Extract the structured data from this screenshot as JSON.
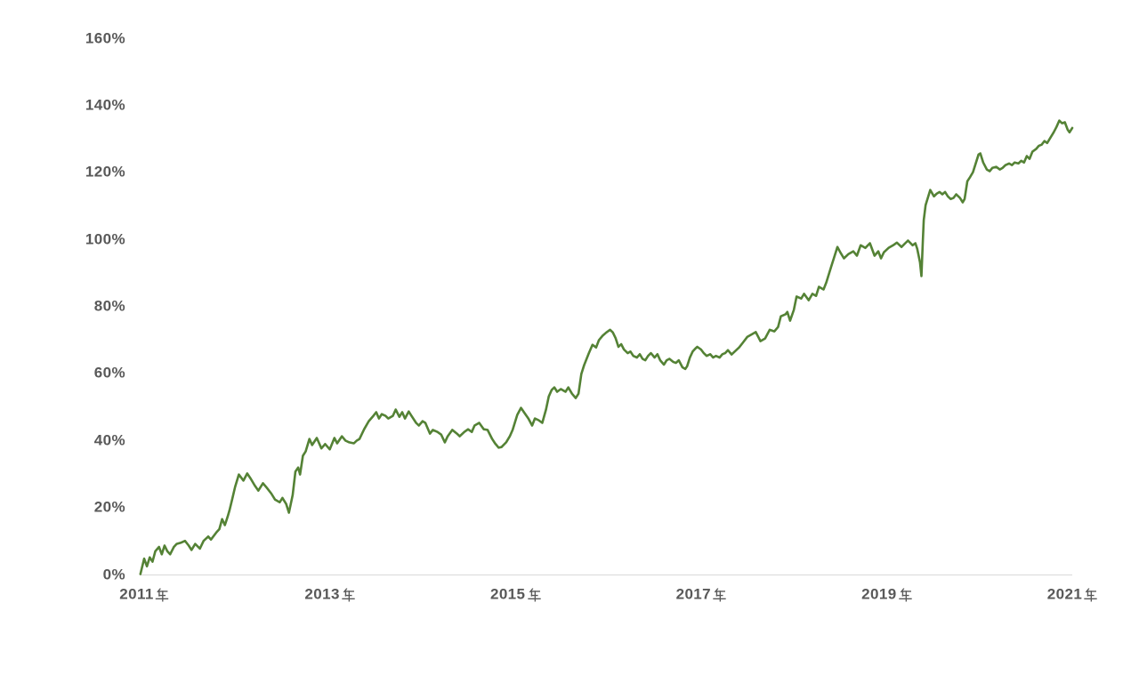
{
  "page": {
    "background": "#ffffff"
  },
  "chart_data": {
    "type": "line",
    "title": "",
    "grid": false,
    "legend": "none",
    "colors": {
      "line": "#548235",
      "axis_labels": "#595959",
      "axis_line": "#d9d9d9",
      "background": "#ffffff"
    },
    "x_axis": {
      "tick_labels": [
        "2011年",
        "2013年",
        "2015年",
        "2017年",
        "2019年",
        "2021年"
      ],
      "tick_years": [
        2011,
        2013,
        2015,
        2017,
        2019,
        2021
      ],
      "range": [
        2010.96,
        2021.0
      ]
    },
    "y_axis": {
      "tick_labels": [
        "0%",
        "20%",
        "40%",
        "60%",
        "80%",
        "100%",
        "120%",
        "140%",
        "160%"
      ],
      "tick_values": [
        0,
        20,
        40,
        60,
        80,
        100,
        120,
        140,
        160
      ],
      "range": [
        0,
        160
      ],
      "unit_suffix": "%"
    },
    "series": [
      {
        "name": "",
        "points": [
          [
            2010.96,
            0.0
          ],
          [
            2011.0,
            4.6
          ],
          [
            2011.03,
            2.3
          ],
          [
            2011.06,
            5.0
          ],
          [
            2011.09,
            3.7
          ],
          [
            2011.12,
            6.8
          ],
          [
            2011.16,
            8.1
          ],
          [
            2011.19,
            5.9
          ],
          [
            2011.22,
            8.5
          ],
          [
            2011.25,
            6.8
          ],
          [
            2011.28,
            5.9
          ],
          [
            2011.32,
            8.1
          ],
          [
            2011.35,
            9.0
          ],
          [
            2011.4,
            9.4
          ],
          [
            2011.44,
            9.9
          ],
          [
            2011.48,
            8.5
          ],
          [
            2011.51,
            7.2
          ],
          [
            2011.55,
            9.0
          ],
          [
            2011.6,
            7.6
          ],
          [
            2011.64,
            9.9
          ],
          [
            2011.69,
            11.2
          ],
          [
            2011.72,
            10.3
          ],
          [
            2011.78,
            12.5
          ],
          [
            2011.81,
            13.4
          ],
          [
            2011.84,
            16.4
          ],
          [
            2011.87,
            14.6
          ],
          [
            2011.9,
            17.2
          ],
          [
            2011.92,
            19.1
          ],
          [
            2011.95,
            22.5
          ],
          [
            2011.98,
            26.0
          ],
          [
            2012.02,
            29.7
          ],
          [
            2012.07,
            27.9
          ],
          [
            2012.11,
            30.0
          ],
          [
            2012.15,
            28.4
          ],
          [
            2012.19,
            26.5
          ],
          [
            2012.23,
            24.9
          ],
          [
            2012.28,
            27.1
          ],
          [
            2012.32,
            25.8
          ],
          [
            2012.37,
            24.0
          ],
          [
            2012.41,
            22.2
          ],
          [
            2012.46,
            21.4
          ],
          [
            2012.49,
            22.7
          ],
          [
            2012.53,
            20.9
          ],
          [
            2012.56,
            18.3
          ],
          [
            2012.6,
            23.6
          ],
          [
            2012.63,
            30.6
          ],
          [
            2012.66,
            31.8
          ],
          [
            2012.68,
            29.7
          ],
          [
            2012.71,
            35.3
          ],
          [
            2012.74,
            36.6
          ],
          [
            2012.78,
            40.3
          ],
          [
            2012.81,
            38.5
          ],
          [
            2012.86,
            40.6
          ],
          [
            2012.91,
            37.5
          ],
          [
            2012.95,
            38.8
          ],
          [
            2013.0,
            37.2
          ],
          [
            2013.05,
            40.6
          ],
          [
            2013.08,
            39.0
          ],
          [
            2013.13,
            41.1
          ],
          [
            2013.17,
            39.8
          ],
          [
            2013.21,
            39.3
          ],
          [
            2013.26,
            39.0
          ],
          [
            2013.29,
            39.8
          ],
          [
            2013.32,
            40.3
          ],
          [
            2013.37,
            43.2
          ],
          [
            2013.42,
            45.6
          ],
          [
            2013.47,
            47.2
          ],
          [
            2013.5,
            48.3
          ],
          [
            2013.53,
            46.4
          ],
          [
            2013.56,
            47.7
          ],
          [
            2013.6,
            47.2
          ],
          [
            2013.63,
            46.4
          ],
          [
            2013.68,
            47.2
          ],
          [
            2013.71,
            49.1
          ],
          [
            2013.75,
            46.9
          ],
          [
            2013.78,
            48.3
          ],
          [
            2013.81,
            46.4
          ],
          [
            2013.85,
            48.5
          ],
          [
            2013.88,
            47.2
          ],
          [
            2013.93,
            45.1
          ],
          [
            2013.96,
            44.3
          ],
          [
            2014.0,
            45.6
          ],
          [
            2014.03,
            45.1
          ],
          [
            2014.08,
            41.9
          ],
          [
            2014.11,
            43.0
          ],
          [
            2014.16,
            42.4
          ],
          [
            2014.2,
            41.6
          ],
          [
            2014.24,
            39.3
          ],
          [
            2014.27,
            41.1
          ],
          [
            2014.32,
            43.0
          ],
          [
            2014.37,
            41.9
          ],
          [
            2014.4,
            41.1
          ],
          [
            2014.45,
            42.4
          ],
          [
            2014.49,
            43.2
          ],
          [
            2014.53,
            42.4
          ],
          [
            2014.56,
            44.3
          ],
          [
            2014.61,
            45.1
          ],
          [
            2014.66,
            43.2
          ],
          [
            2014.7,
            43.0
          ],
          [
            2014.75,
            40.3
          ],
          [
            2014.78,
            39.0
          ],
          [
            2014.82,
            37.7
          ],
          [
            2014.85,
            37.9
          ],
          [
            2014.9,
            39.3
          ],
          [
            2014.94,
            41.1
          ],
          [
            2014.97,
            43.0
          ],
          [
            2015.02,
            47.5
          ],
          [
            2015.06,
            49.6
          ],
          [
            2015.1,
            48.0
          ],
          [
            2015.14,
            46.4
          ],
          [
            2015.18,
            44.3
          ],
          [
            2015.21,
            46.4
          ],
          [
            2015.25,
            45.9
          ],
          [
            2015.29,
            45.1
          ],
          [
            2015.33,
            49.1
          ],
          [
            2015.36,
            53.0
          ],
          [
            2015.39,
            54.9
          ],
          [
            2015.42,
            55.7
          ],
          [
            2015.45,
            54.4
          ],
          [
            2015.49,
            55.2
          ],
          [
            2015.54,
            54.4
          ],
          [
            2015.57,
            55.7
          ],
          [
            2015.61,
            53.8
          ],
          [
            2015.65,
            52.5
          ],
          [
            2015.68,
            53.8
          ],
          [
            2015.71,
            59.7
          ],
          [
            2015.74,
            62.3
          ],
          [
            2015.79,
            65.8
          ],
          [
            2015.83,
            68.4
          ],
          [
            2015.87,
            67.6
          ],
          [
            2015.9,
            69.8
          ],
          [
            2015.94,
            71.1
          ],
          [
            2015.98,
            72.1
          ],
          [
            2016.02,
            72.9
          ],
          [
            2016.05,
            72.1
          ],
          [
            2016.08,
            70.4
          ],
          [
            2016.11,
            67.8
          ],
          [
            2016.14,
            68.6
          ],
          [
            2016.17,
            67.0
          ],
          [
            2016.21,
            65.9
          ],
          [
            2016.24,
            66.4
          ],
          [
            2016.27,
            65.1
          ],
          [
            2016.31,
            64.6
          ],
          [
            2016.34,
            65.6
          ],
          [
            2016.37,
            64.2
          ],
          [
            2016.4,
            63.8
          ],
          [
            2016.43,
            65.1
          ],
          [
            2016.46,
            65.9
          ],
          [
            2016.5,
            64.6
          ],
          [
            2016.53,
            65.6
          ],
          [
            2016.56,
            63.8
          ],
          [
            2016.6,
            62.5
          ],
          [
            2016.63,
            63.8
          ],
          [
            2016.66,
            64.2
          ],
          [
            2016.7,
            63.3
          ],
          [
            2016.73,
            63.0
          ],
          [
            2016.76,
            63.8
          ],
          [
            2016.8,
            61.7
          ],
          [
            2016.83,
            61.2
          ],
          [
            2016.85,
            62.0
          ],
          [
            2016.88,
            64.6
          ],
          [
            2016.91,
            66.4
          ],
          [
            2016.94,
            67.3
          ],
          [
            2016.96,
            67.8
          ],
          [
            2017.0,
            67.0
          ],
          [
            2017.03,
            65.9
          ],
          [
            2017.06,
            65.1
          ],
          [
            2017.1,
            65.6
          ],
          [
            2017.13,
            64.6
          ],
          [
            2017.16,
            65.1
          ],
          [
            2017.2,
            64.6
          ],
          [
            2017.23,
            65.6
          ],
          [
            2017.26,
            65.9
          ],
          [
            2017.29,
            66.8
          ],
          [
            2017.33,
            65.5
          ],
          [
            2017.38,
            66.8
          ],
          [
            2017.41,
            67.6
          ],
          [
            2017.45,
            69.0
          ],
          [
            2017.5,
            70.8
          ],
          [
            2017.55,
            71.6
          ],
          [
            2017.59,
            72.2
          ],
          [
            2017.64,
            69.5
          ],
          [
            2017.69,
            70.3
          ],
          [
            2017.74,
            72.9
          ],
          [
            2017.79,
            72.4
          ],
          [
            2017.83,
            73.7
          ],
          [
            2017.86,
            76.9
          ],
          [
            2017.91,
            77.5
          ],
          [
            2017.93,
            78.2
          ],
          [
            2017.96,
            75.6
          ],
          [
            2018.0,
            78.8
          ],
          [
            2018.03,
            82.8
          ],
          [
            2018.08,
            82.2
          ],
          [
            2018.11,
            83.6
          ],
          [
            2018.16,
            81.7
          ],
          [
            2018.2,
            83.6
          ],
          [
            2018.24,
            83.0
          ],
          [
            2018.27,
            85.7
          ],
          [
            2018.32,
            84.9
          ],
          [
            2018.35,
            87.0
          ],
          [
            2018.4,
            91.5
          ],
          [
            2018.44,
            95.0
          ],
          [
            2018.47,
            97.6
          ],
          [
            2018.5,
            96.0
          ],
          [
            2018.54,
            94.2
          ],
          [
            2018.59,
            95.5
          ],
          [
            2018.64,
            96.3
          ],
          [
            2018.68,
            95.0
          ],
          [
            2018.72,
            98.1
          ],
          [
            2018.77,
            97.3
          ],
          [
            2018.82,
            98.7
          ],
          [
            2018.87,
            95.0
          ],
          [
            2018.91,
            96.3
          ],
          [
            2018.94,
            94.2
          ],
          [
            2018.97,
            96.0
          ],
          [
            2019.02,
            97.3
          ],
          [
            2019.07,
            98.1
          ],
          [
            2019.11,
            98.9
          ],
          [
            2019.16,
            97.6
          ],
          [
            2019.2,
            98.7
          ],
          [
            2019.23,
            99.5
          ],
          [
            2019.28,
            98.1
          ],
          [
            2019.31,
            98.7
          ],
          [
            2019.33,
            97.0
          ],
          [
            2019.36,
            93.0
          ],
          [
            2019.375,
            88.9
          ],
          [
            2019.39,
            99.5
          ],
          [
            2019.4,
            105.6
          ],
          [
            2019.42,
            110.1
          ],
          [
            2019.44,
            111.9
          ],
          [
            2019.47,
            114.6
          ],
          [
            2019.51,
            112.7
          ],
          [
            2019.54,
            113.5
          ],
          [
            2019.57,
            114.0
          ],
          [
            2019.6,
            113.3
          ],
          [
            2019.63,
            114.0
          ],
          [
            2019.66,
            112.7
          ],
          [
            2019.69,
            111.9
          ],
          [
            2019.72,
            112.2
          ],
          [
            2019.75,
            113.3
          ],
          [
            2019.79,
            112.2
          ],
          [
            2019.82,
            110.9
          ],
          [
            2019.84,
            111.9
          ],
          [
            2019.87,
            117.2
          ],
          [
            2019.9,
            118.5
          ],
          [
            2019.93,
            119.9
          ],
          [
            2019.96,
            122.5
          ],
          [
            2019.99,
            125.2
          ],
          [
            2020.01,
            125.5
          ],
          [
            2020.04,
            122.8
          ],
          [
            2020.08,
            120.7
          ],
          [
            2020.11,
            120.2
          ],
          [
            2020.14,
            121.2
          ],
          [
            2020.18,
            121.5
          ],
          [
            2020.22,
            120.7
          ],
          [
            2020.25,
            121.2
          ],
          [
            2020.28,
            122.0
          ],
          [
            2020.32,
            122.5
          ],
          [
            2020.35,
            122.0
          ],
          [
            2020.38,
            122.8
          ],
          [
            2020.42,
            122.5
          ],
          [
            2020.45,
            123.3
          ],
          [
            2020.48,
            122.8
          ],
          [
            2020.51,
            124.7
          ],
          [
            2020.54,
            123.9
          ],
          [
            2020.57,
            126.0
          ],
          [
            2020.61,
            126.8
          ],
          [
            2020.64,
            127.8
          ],
          [
            2020.67,
            128.1
          ],
          [
            2020.7,
            129.2
          ],
          [
            2020.73,
            128.6
          ],
          [
            2020.76,
            130.0
          ],
          [
            2020.8,
            131.8
          ],
          [
            2020.83,
            133.4
          ],
          [
            2020.86,
            135.3
          ],
          [
            2020.89,
            134.5
          ],
          [
            2020.92,
            134.8
          ],
          [
            2020.95,
            132.6
          ],
          [
            2020.97,
            131.8
          ],
          [
            2021.0,
            133.1
          ]
        ]
      }
    ]
  }
}
